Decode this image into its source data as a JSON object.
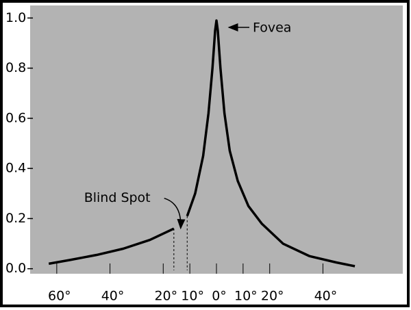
{
  "chart_data": {
    "type": "line",
    "x": [
      -63,
      -55,
      -45,
      -35,
      -25,
      -16,
      -13.5,
      -11,
      -8,
      -5,
      -3,
      -1.5,
      -0.5,
      0,
      0.5,
      1.5,
      3,
      5,
      8,
      12,
      17,
      25,
      35,
      45,
      52
    ],
    "series": [
      {
        "color": "#000000",
        "values": [
          0.02,
          0.035,
          0.055,
          0.08,
          0.115,
          0.16,
          null,
          0.21,
          0.3,
          0.45,
          0.62,
          0.8,
          0.95,
          0.99,
          0.95,
          0.8,
          0.62,
          0.47,
          0.35,
          0.25,
          0.18,
          0.1,
          0.05,
          0.025,
          0.01
        ]
      }
    ],
    "xlim": [
      -70,
      70
    ],
    "ylim": [
      -0.02,
      1.05
    ],
    "xticks": [
      {
        "value": -60,
        "label": "60°"
      },
      {
        "value": -40,
        "label": "40°"
      },
      {
        "value": -20,
        "label": "20°"
      },
      {
        "value": -10,
        "label": "10°"
      },
      {
        "value": 0,
        "label": "0°"
      },
      {
        "value": 10,
        "label": "10°"
      },
      {
        "value": 20,
        "label": "20°"
      },
      {
        "value": 40,
        "label": "40°"
      }
    ],
    "yticks": [
      {
        "value": 0,
        "label": "0.0"
      },
      {
        "value": 0.2,
        "label": "0.2"
      },
      {
        "value": 0.4,
        "label": "0.4"
      },
      {
        "value": 0.6,
        "label": "0.6"
      },
      {
        "value": 0.8,
        "label": "0.8"
      },
      {
        "value": 1,
        "label": "1.0"
      }
    ],
    "background": "#b3b3b3",
    "annotations": [
      {
        "text": "Fovea",
        "x": 0,
        "y": 0.99
      },
      {
        "text": "Blind Spot",
        "x": -15,
        "y": 0.15
      }
    ]
  }
}
